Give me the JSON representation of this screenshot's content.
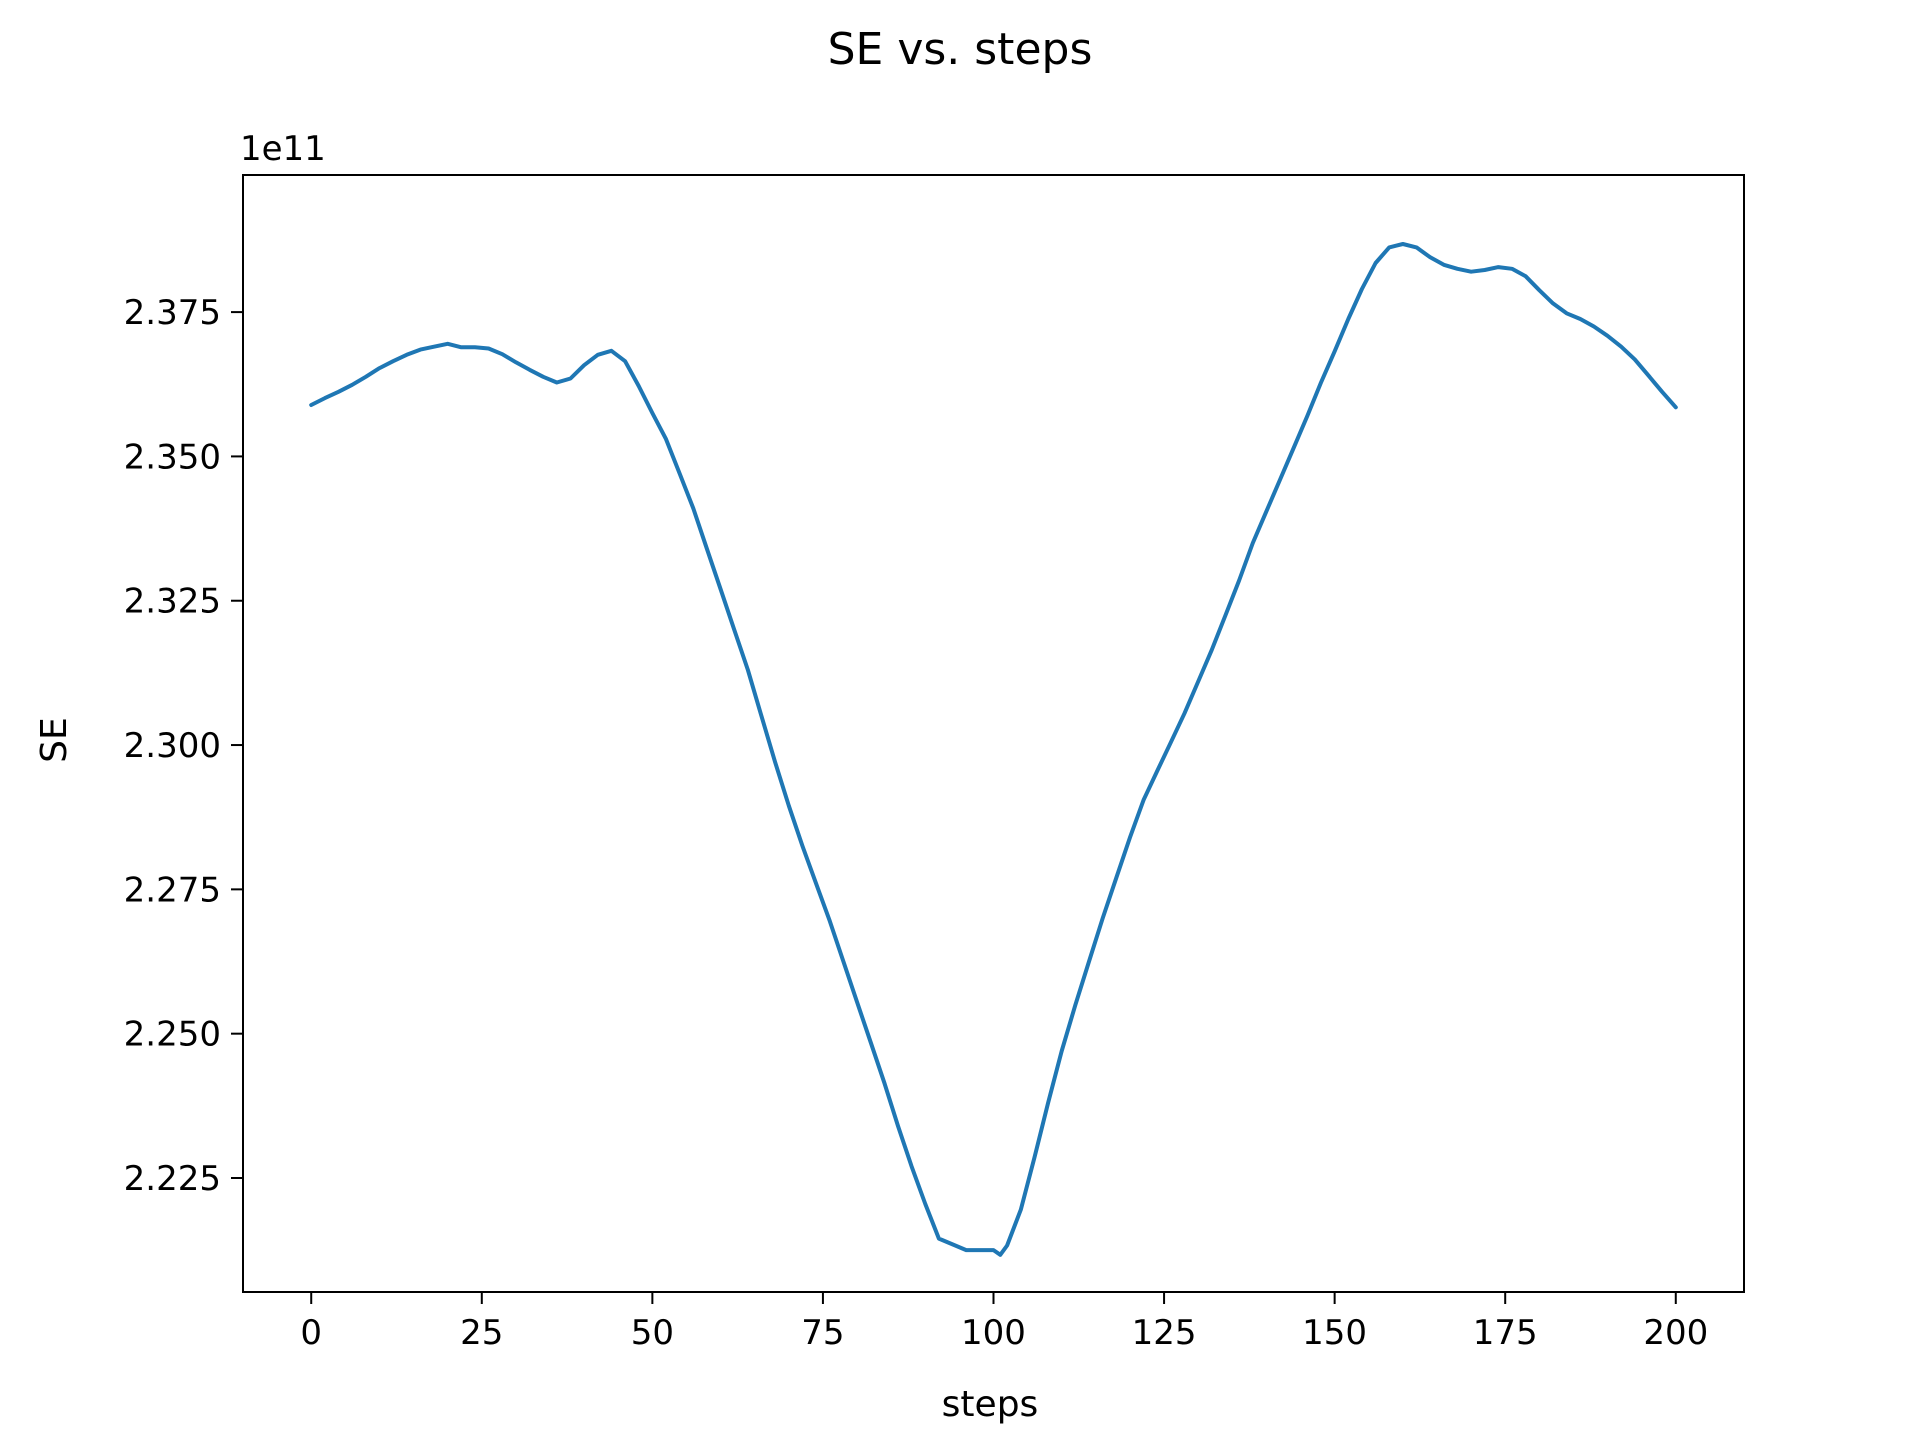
{
  "chart_data": {
    "type": "line",
    "title": "SE vs. steps",
    "xlabel": "steps",
    "ylabel": "SE",
    "offset_label": "1e11",
    "xlim": [
      -10,
      210
    ],
    "ylim": [
      2.20525,
      2.39875
    ],
    "xticks": [
      0,
      25,
      50,
      75,
      100,
      125,
      150,
      175,
      200
    ],
    "xtick_labels": [
      "0",
      "25",
      "50",
      "75",
      "100",
      "125",
      "150",
      "175",
      "200"
    ],
    "yticks": [
      2.225,
      2.25,
      2.275,
      2.3,
      2.325,
      2.35,
      2.375
    ],
    "ytick_labels": [
      "2.225",
      "2.250",
      "2.275",
      "2.300",
      "2.325",
      "2.350",
      "2.375"
    ],
    "grid": false,
    "series": [
      {
        "color": "#1f77b4",
        "x": [
          0,
          2,
          4,
          6,
          8,
          10,
          12,
          14,
          16,
          18,
          20,
          22,
          24,
          26,
          28,
          30,
          32,
          34,
          36,
          38,
          40,
          42,
          44,
          46,
          48,
          50,
          52,
          54,
          56,
          58,
          60,
          62,
          64,
          66,
          68,
          70,
          72,
          74,
          76,
          78,
          80,
          82,
          84,
          86,
          88,
          90,
          92,
          94,
          96,
          98,
          100,
          101,
          102,
          104,
          106,
          108,
          110,
          112,
          114,
          116,
          118,
          120,
          122,
          124,
          126,
          128,
          130,
          132,
          134,
          136,
          138,
          140,
          142,
          144,
          146,
          148,
          150,
          152,
          154,
          156,
          158,
          160,
          162,
          164,
          166,
          168,
          170,
          172,
          174,
          176,
          178,
          180,
          182,
          184,
          186,
          188,
          190,
          192,
          194,
          196,
          198,
          200
        ],
        "y": [
          2.3589,
          2.3601,
          2.3612,
          2.3624,
          2.3638,
          2.3653,
          2.3665,
          2.3676,
          2.3685,
          2.369,
          2.3695,
          2.3689,
          2.3689,
          2.3687,
          2.3677,
          2.3663,
          2.365,
          2.3638,
          2.3628,
          2.3635,
          2.3658,
          2.3676,
          2.3683,
          2.3665,
          2.3622,
          2.3575,
          2.353,
          2.347,
          2.341,
          2.334,
          2.327,
          2.32,
          2.313,
          2.305,
          2.297,
          2.2895,
          2.2825,
          2.276,
          2.2695,
          2.2625,
          2.2555,
          2.2485,
          2.2415,
          2.234,
          2.227,
          2.2205,
          2.2145,
          2.2135,
          2.2125,
          2.2125,
          2.2125,
          2.2117,
          2.2133,
          2.2195,
          2.2285,
          2.238,
          2.247,
          2.255,
          2.2625,
          2.27,
          2.277,
          2.284,
          2.2905,
          2.2955,
          2.3005,
          2.3055,
          2.311,
          2.3165,
          2.3225,
          2.3285,
          2.335,
          2.3405,
          2.346,
          2.3515,
          2.357,
          2.3628,
          2.3682,
          2.3738,
          2.379,
          2.3835,
          2.3862,
          2.3868,
          2.3862,
          2.3845,
          2.3832,
          2.3825,
          2.382,
          2.3823,
          2.3828,
          2.3825,
          2.3812,
          2.3788,
          2.3765,
          2.3748,
          2.3738,
          2.3725,
          2.3709,
          2.369,
          2.3668,
          2.364,
          2.3612,
          2.3585
        ]
      }
    ]
  }
}
